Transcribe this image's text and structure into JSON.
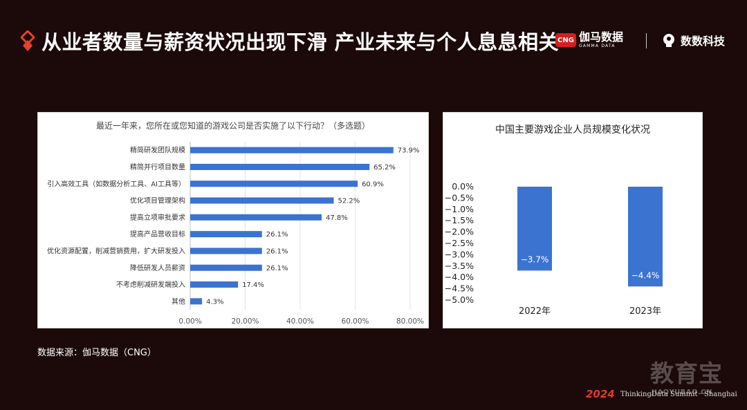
{
  "header": {
    "title": "从业者数量与薪资状况出现下滑  产业未来与个人息息相关"
  },
  "brands": {
    "cng_badge": "CNG",
    "cng_name": "伽马数据",
    "cng_sub": "GAMMA DATA",
    "shushu_name": "数数科技"
  },
  "colors": {
    "accent": "#e8402a",
    "bar": "#3b73d1",
    "background": "#1c0a0a"
  },
  "chart_data": [
    {
      "type": "bar",
      "orientation": "horizontal",
      "title": "最近一年来，您所在或您知道的游戏公司是否实施了以下行动？（多选题）",
      "categories": [
        "精简研发团队规模",
        "精简并行项目数量",
        "引入高效工具（如数据分析工具、AI工具等）",
        "优化项目管理架构",
        "提高立项审批要求",
        "提高产品营收目标",
        "优化资源配置，削减营销费用，扩大研发投入",
        "降低研发人员薪资",
        "不考虑削减研发端投入",
        "其他"
      ],
      "values": [
        73.9,
        65.2,
        60.9,
        52.2,
        47.8,
        26.1,
        26.1,
        26.1,
        17.4,
        4.3
      ],
      "value_labels": [
        "73.9%",
        "65.2%",
        "60.9%",
        "52.2%",
        "47.8%",
        "26.1%",
        "26.1%",
        "26.1%",
        "17.4%",
        "4.3%"
      ],
      "xlim": [
        0,
        80
      ],
      "xticks": [
        "0.00%",
        "20.00%",
        "40.00%",
        "60.00%",
        "80.00%"
      ],
      "grid": true
    },
    {
      "type": "bar",
      "title": "中国主要游戏企业人员规模变化状况",
      "categories": [
        "2022年",
        "2023年"
      ],
      "values": [
        -3.7,
        -4.4
      ],
      "value_labels": [
        "−3.7%",
        "−4.4%"
      ],
      "ylim": [
        -5.0,
        0.0
      ],
      "yticks": [
        "0.0%",
        "−0.5%",
        "−1.0%",
        "−1.5%",
        "−2.0%",
        "−2.5%",
        "−3.0%",
        "−3.5%",
        "−4.0%",
        "−4.5%",
        "−5.0%"
      ],
      "grid": false
    }
  ],
  "footer": {
    "source": "数据来源：伽马数据（CNG）",
    "watermark": "教育宝",
    "watermark_sub": "JIAOYUBAO.CN",
    "event_year": "2024",
    "event_name": "ThinkingData Summit · Shanghai"
  }
}
